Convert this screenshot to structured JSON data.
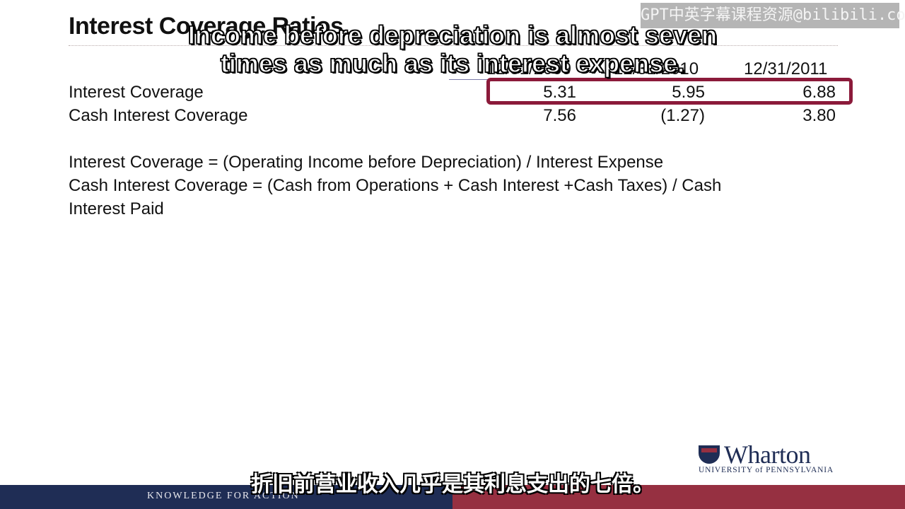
{
  "slide": {
    "title": "Interest Coverage Ratios",
    "columns": [
      "12/31/2009",
      "12/31/2010",
      "12/31/2011"
    ],
    "rows": [
      {
        "label": "Interest Coverage",
        "values": [
          "5.31",
          "5.95",
          "6.88"
        ]
      },
      {
        "label": "Cash Interest Coverage",
        "values": [
          "7.56",
          "(1.27)",
          "3.80"
        ]
      }
    ],
    "definitions": [
      "Interest Coverage = (Operating Income before Depreciation) / Interest Expense",
      "Cash Interest Coverage = (Cash from Operations + Cash Interest +Cash Taxes) / Cash",
      "Interest Paid"
    ]
  },
  "watermark": "GPT中英字幕课程资源@bilibili.com",
  "subtitles": {
    "en_line1": "Income before depreciation is almost seven",
    "en_line2": "times as much as its interest expense.",
    "zh": "折旧前营业收入几乎是其利息支出的七倍。"
  },
  "footer": {
    "tagline": "KNOWLEDGE FOR ACTION",
    "logo_name": "Wharton",
    "logo_sub": "UNIVERSITY of PENNSYLVANIA"
  },
  "colors": {
    "navy": "#1f2d55",
    "maroon": "#963041",
    "highlight": "#8b1a3a"
  }
}
